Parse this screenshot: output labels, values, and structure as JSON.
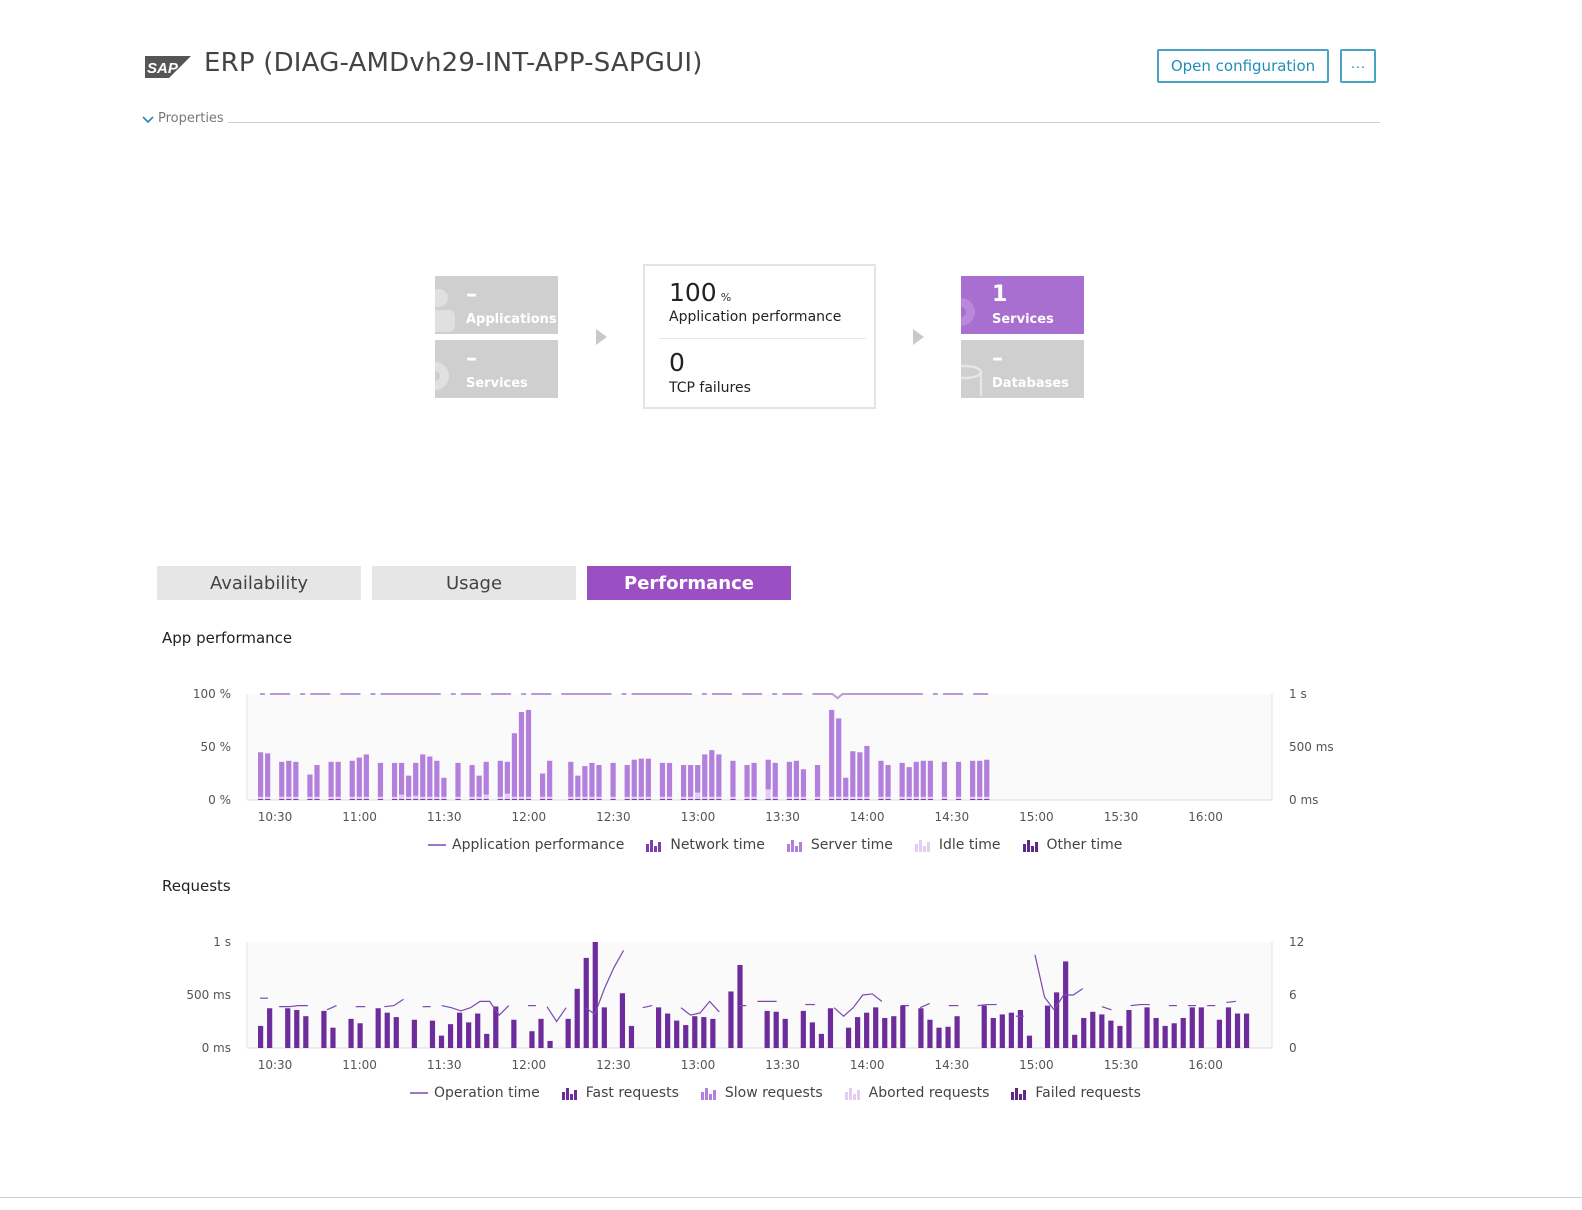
{
  "header": {
    "logo_text": "SAP",
    "title": "ERP (DIAG-AMDvh29-INT-APP-SAPGUI)",
    "open_config_label": "Open configuration",
    "more_label": "···",
    "properties_label": "Properties"
  },
  "flow": {
    "left_tiles": [
      {
        "value": "–",
        "label": "Applications",
        "icon": "user-icon"
      },
      {
        "value": "–",
        "label": "Services",
        "icon": "gear-icon"
      }
    ],
    "center": {
      "perf_value": "100",
      "perf_unit": "%",
      "perf_label": "Application performance",
      "tcp_value": "0",
      "tcp_label": "TCP failures"
    },
    "right_tiles": [
      {
        "value": "1",
        "label": "Services",
        "icon": "gear-icon"
      },
      {
        "value": "–",
        "label": "Databases",
        "icon": "database-icon"
      }
    ]
  },
  "tabs": [
    {
      "label": "Availability",
      "active": false
    },
    {
      "label": "Usage",
      "active": false
    },
    {
      "label": "Performance",
      "active": true
    }
  ],
  "colors": {
    "accent": "#9a50c3",
    "tile_purple": "#a86fd0",
    "tile_grey": "#cfcfcf",
    "network": "#7a3eb0",
    "server": "#b27fdc",
    "idle": "#e3cdf2",
    "other": "#5a2a86",
    "fast": "#6d2c9c",
    "line": "#7d47b2",
    "button_border": "#4aa3c3"
  },
  "chart_data": [
    {
      "type": "bar",
      "title": "App performance",
      "x_ticks": [
        "10:30",
        "11:00",
        "11:30",
        "12:00",
        "12:30",
        "13:00",
        "13:30",
        "14:00",
        "14:30",
        "15:00",
        "15:30",
        "16:00"
      ],
      "y_left_ticks": [
        "100 %",
        "50 %",
        "0 %"
      ],
      "y_right_ticks": [
        "1 s",
        "500 ms",
        "0 ms"
      ],
      "ylim_left": [
        0,
        100
      ],
      "ylim_right_ms": [
        0,
        1000
      ],
      "x_interval_minutes": 2.5,
      "x_start": "10:25",
      "series": [
        {
          "name": "Application performance",
          "kind": "line",
          "unit": "%",
          "values": [
            100,
            null,
            100,
            100,
            100,
            100,
            100,
            null,
            100,
            null,
            100,
            100,
            100,
            100,
            100,
            null,
            100,
            100,
            100,
            100,
            100,
            null,
            100,
            null,
            100,
            100,
            100,
            100,
            100,
            100,
            100,
            100,
            100,
            100,
            100,
            100,
            100,
            null,
            100,
            null,
            100,
            100,
            100,
            100,
            100,
            null,
            100,
            100,
            100,
            100,
            100,
            null,
            100,
            null,
            100,
            100,
            100,
            100,
            100,
            null,
            100,
            100,
            100,
            100,
            100,
            100,
            100,
            100,
            100,
            100,
            100,
            null,
            100,
            null,
            100,
            100,
            100,
            100,
            100,
            100,
            100,
            100,
            100,
            100,
            100,
            100,
            100,
            null,
            100,
            null,
            100,
            100,
            100,
            100,
            100,
            null,
            100,
            100,
            100,
            100,
            100,
            null,
            100,
            null,
            100,
            100,
            100,
            100,
            100,
            null,
            100,
            100,
            100,
            100,
            100,
            96,
            100,
            100,
            100,
            100,
            100,
            100,
            100,
            100,
            100,
            100,
            100,
            100,
            100,
            100,
            100,
            100,
            100,
            null,
            100,
            null,
            100,
            100,
            100,
            100,
            100,
            null,
            100,
            100,
            100,
            100
          ]
        },
        {
          "name": "Server time",
          "kind": "bar",
          "unit": "ms",
          "values": [
            420,
            410,
            0,
            330,
            340,
            330,
            0,
            210,
            300,
            0,
            330,
            330,
            0,
            340,
            370,
            400,
            0,
            320,
            0,
            320,
            300,
            200,
            310,
            400,
            380,
            340,
            180,
            0,
            320,
            0,
            300,
            200,
            310,
            0,
            340,
            300,
            600,
            800,
            820,
            0,
            220,
            340,
            0,
            0,
            330,
            200,
            290,
            320,
            300,
            0,
            320,
            0,
            300,
            350,
            360,
            360,
            0,
            320,
            320,
            0,
            300,
            300,
            260,
            400,
            440,
            400,
            0,
            340,
            0,
            300,
            320,
            0,
            280,
            320,
            0,
            330,
            340,
            260,
            0,
            300,
            0,
            820,
            740,
            180,
            430,
            420,
            480,
            0,
            340,
            300,
            0,
            320,
            280,
            330,
            340,
            340,
            0,
            330,
            0,
            330,
            0,
            340,
            340,
            350
          ]
        },
        {
          "name": "Idle time",
          "kind": "bar",
          "unit": "ms",
          "values": [
            20,
            20,
            0,
            20,
            20,
            20,
            0,
            20,
            20,
            0,
            20,
            20,
            0,
            20,
            20,
            20,
            0,
            20,
            0,
            20,
            40,
            20,
            30,
            20,
            20,
            20,
            20,
            0,
            20,
            0,
            20,
            20,
            40,
            0,
            20,
            50,
            20,
            20,
            20,
            0,
            20,
            20,
            0,
            0,
            20,
            20,
            20,
            20,
            20,
            0,
            20,
            0,
            20,
            20,
            20,
            20,
            0,
            20,
            20,
            0,
            20,
            20,
            60,
            20,
            20,
            20,
            0,
            20,
            0,
            20,
            20,
            0,
            90,
            20,
            0,
            20,
            20,
            20,
            0,
            20,
            0,
            20,
            20,
            20,
            20,
            20,
            20,
            0,
            20,
            20,
            0,
            20,
            20,
            20,
            20,
            20,
            0,
            20,
            0,
            20,
            0,
            20,
            20,
            20
          ]
        },
        {
          "name": "Network time",
          "kind": "bar",
          "unit": "ms",
          "values": [
            10,
            10,
            0,
            10,
            10,
            10,
            0,
            10,
            10,
            0,
            10,
            10,
            0,
            10,
            10,
            10,
            0,
            10,
            0,
            10,
            10,
            10,
            10,
            10,
            10,
            10,
            10,
            0,
            10,
            0,
            10,
            10,
            10,
            0,
            10,
            10,
            10,
            10,
            10,
            0,
            10,
            10,
            0,
            0,
            10,
            10,
            10,
            10,
            10,
            0,
            10,
            0,
            10,
            10,
            10,
            10,
            0,
            10,
            10,
            0,
            10,
            10,
            10,
            10,
            10,
            10,
            0,
            10,
            0,
            10,
            10,
            0,
            10,
            10,
            0,
            10,
            10,
            10,
            0,
            10,
            0,
            10,
            10,
            10,
            10,
            10,
            10,
            0,
            10,
            10,
            0,
            10,
            10,
            10,
            10,
            10,
            0,
            10,
            0,
            10,
            0,
            10,
            10,
            10
          ]
        },
        {
          "name": "Other time",
          "kind": "bar",
          "unit": "ms",
          "values": [
            0,
            0,
            0,
            0,
            0,
            0,
            0,
            0,
            0,
            0,
            0,
            0,
            0,
            0,
            0,
            0,
            0,
            0,
            0,
            0,
            0,
            0,
            0,
            0,
            0,
            0,
            0,
            0,
            0,
            0,
            0,
            0,
            0,
            0,
            0,
            0,
            0,
            0,
            0,
            0,
            0,
            0,
            0,
            0,
            0,
            0,
            0,
            0,
            0,
            0,
            0,
            0,
            0,
            0,
            0,
            0,
            0,
            0,
            0,
            0,
            0,
            0,
            0,
            0,
            0,
            0,
            0,
            0,
            0,
            0,
            0,
            0,
            0,
            0,
            0,
            0,
            0,
            0,
            0,
            0,
            0,
            0,
            0,
            0,
            0,
            0,
            0,
            0,
            0,
            0,
            0,
            0,
            0,
            0,
            0,
            0,
            0,
            0,
            0,
            0,
            0,
            0,
            0,
            0
          ]
        }
      ]
    },
    {
      "type": "bar",
      "title": "Requests",
      "x_ticks": [
        "10:30",
        "11:00",
        "11:30",
        "12:00",
        "12:30",
        "13:00",
        "13:30",
        "14:00",
        "14:30",
        "15:00",
        "15:30",
        "16:00"
      ],
      "y_left_ticks": [
        "1 s",
        "500 ms",
        "0 ms"
      ],
      "y_right_ticks": [
        "12",
        "6",
        "0"
      ],
      "ylim_left_ms": [
        0,
        1000
      ],
      "ylim_right": [
        0,
        12
      ],
      "series": [
        {
          "name": "Operation time",
          "kind": "line",
          "unit": "ms",
          "values": [
            470,
            null,
            390,
            390,
            400,
            400,
            null,
            360,
            400,
            null,
            390,
            390,
            null,
            390,
            400,
            460,
            null,
            390,
            null,
            400,
            380,
            350,
            380,
            440,
            440,
            310,
            400,
            null,
            400,
            null,
            390,
            250,
            380,
            null,
            380,
            320,
            560,
            760,
            920,
            null,
            380,
            400,
            null,
            null,
            380,
            310,
            330,
            440,
            340,
            null,
            400,
            null,
            440,
            440,
            440,
            null,
            null,
            410,
            410,
            null,
            380,
            300,
            380,
            500,
            510,
            440,
            null,
            400,
            null,
            380,
            420,
            null,
            400,
            400,
            null,
            400,
            410,
            410,
            null,
            300,
            null,
            880,
            480,
            360,
            500,
            500,
            560,
            null,
            390,
            360,
            null,
            400,
            410,
            410,
            null,
            400,
            null,
            400,
            null,
            400,
            null,
            430,
            440,
            null
          ]
        },
        {
          "name": "Fast requests",
          "kind": "bar",
          "unit": "count",
          "values": [
            2.5,
            4.5,
            0,
            4.5,
            4.3,
            3.6,
            0,
            4.2,
            2.3,
            0,
            3.3,
            2.8,
            0,
            4.5,
            4,
            3.5,
            0,
            3.2,
            0,
            3.1,
            1.4,
            2.7,
            4,
            2.9,
            3.9,
            1.6,
            4.7,
            0,
            3.2,
            0,
            1.9,
            3.3,
            0.8,
            0,
            3.3,
            6.7,
            10.2,
            12,
            4.6,
            0,
            6.2,
            2.5,
            0,
            0,
            4.6,
            3.9,
            3.1,
            2.6,
            3.6,
            3.5,
            3.3,
            0,
            6.4,
            9.4,
            0,
            0,
            4.2,
            4.1,
            3.3,
            0,
            4.2,
            2.9,
            1.6,
            4.5,
            0,
            2.3,
            3.5,
            4,
            4.6,
            3.4,
            3.6,
            4.8,
            0,
            4.5,
            3.2,
            2.3,
            2.4,
            3.6,
            0,
            0,
            4.8,
            3.4,
            3.8,
            4,
            4.3,
            1.4,
            0,
            4.8,
            6.3,
            9.8,
            1.5,
            3.4,
            4.1,
            3.8,
            3.1,
            2.5,
            4.3,
            0,
            4.6,
            3.4,
            2.5,
            2.8,
            3.4,
            4.6,
            4.6,
            0,
            3.2,
            4.6,
            3.9,
            3.9
          ]
        },
        {
          "name": "Slow requests",
          "kind": "bar",
          "unit": "count",
          "values": []
        },
        {
          "name": "Aborted requests",
          "kind": "bar",
          "unit": "count",
          "values": []
        },
        {
          "name": "Failed requests",
          "kind": "bar",
          "unit": "count",
          "values": []
        }
      ]
    }
  ],
  "legend1": [
    {
      "label": "Application performance",
      "swatch": "line"
    },
    {
      "label": "Network time",
      "swatch": "network"
    },
    {
      "label": "Server time",
      "swatch": "server"
    },
    {
      "label": "Idle time",
      "swatch": "idle"
    },
    {
      "label": "Other time",
      "swatch": "other"
    }
  ],
  "legend2": [
    {
      "label": "Operation time",
      "swatch": "line"
    },
    {
      "label": "Fast requests",
      "swatch": "fast"
    },
    {
      "label": "Slow requests",
      "swatch": "server"
    },
    {
      "label": "Aborted requests",
      "swatch": "idle"
    },
    {
      "label": "Failed requests",
      "swatch": "other"
    }
  ]
}
